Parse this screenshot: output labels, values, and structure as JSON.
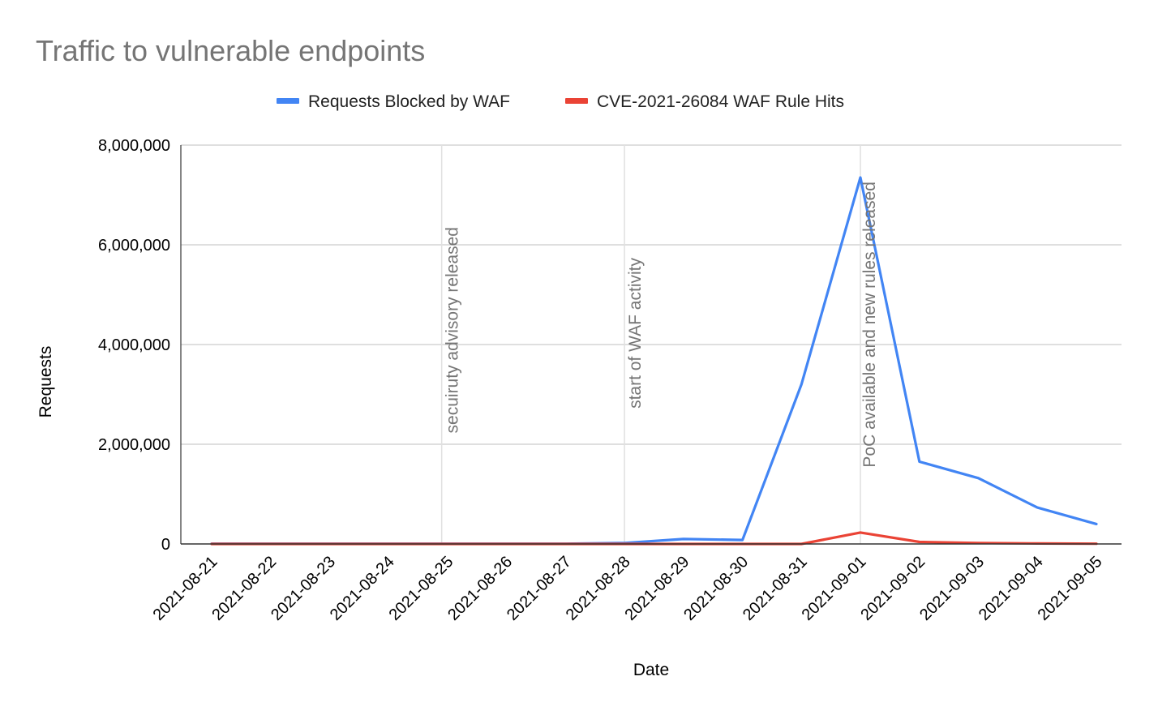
{
  "chart_data": {
    "type": "line",
    "title": "Traffic to vulnerable endpoints",
    "xlabel": "Date",
    "ylabel": "Requests",
    "ylim": [
      0,
      8000000
    ],
    "yticks": [
      0,
      2000000,
      4000000,
      6000000,
      8000000
    ],
    "ytick_labels": [
      "0",
      "2,000,000",
      "4,000,000",
      "6,000,000",
      "8,000,000"
    ],
    "grid": true,
    "legend_position": "top",
    "categories": [
      "2021-08-21",
      "2021-08-22",
      "2021-08-23",
      "2021-08-24",
      "2021-08-25",
      "2021-08-26",
      "2021-08-27",
      "2021-08-28",
      "2021-08-29",
      "2021-08-30",
      "2021-08-31",
      "2021-09-01",
      "2021-09-02",
      "2021-09-03",
      "2021-09-04",
      "2021-09-05"
    ],
    "series": [
      {
        "name": "Requests Blocked by WAF",
        "color": "#4285f4",
        "values": [
          5000,
          5000,
          5000,
          5000,
          5000,
          5000,
          5000,
          20000,
          100000,
          80000,
          3200000,
          7350000,
          1650000,
          1320000,
          730000,
          400000
        ]
      },
      {
        "name": "CVE-2021-26084 WAF Rule Hits",
        "color": "#ea4335",
        "values": [
          0,
          0,
          0,
          0,
          0,
          0,
          0,
          0,
          0,
          0,
          0,
          230000,
          40000,
          20000,
          10000,
          5000
        ]
      }
    ],
    "annotations": [
      {
        "text": "secuiruty advisory released",
        "x": "2021-08-25",
        "offset_days": -0.1
      },
      {
        "text": "start of WAF activity",
        "x": "2021-08-28",
        "offset_days": 0
      },
      {
        "text": "PoC available and new rules released",
        "x": "2021-09-01",
        "offset_days": 0
      }
    ]
  }
}
